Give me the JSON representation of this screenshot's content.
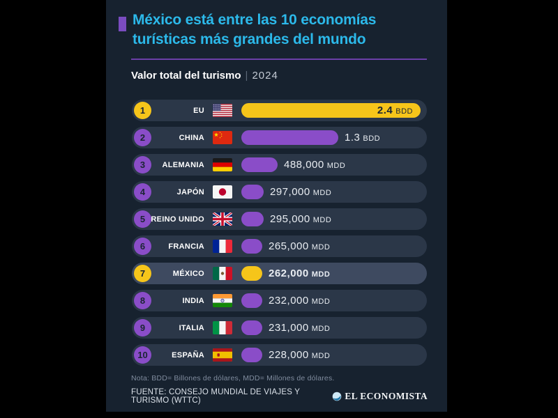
{
  "header": {
    "title_line1": "México está entre las 10 economías",
    "title_line2": "turísticas más grandes del mundo",
    "subtitle_label": "Valor total del turismo",
    "subtitle_separator": "|",
    "subtitle_year": "2024"
  },
  "chart_data": {
    "type": "bar",
    "orientation": "horizontal",
    "title": "Valor total del turismo | 2024",
    "categories": [
      "EU",
      "CHINA",
      "ALEMANIA",
      "JAPÓN",
      "REINO UNIDO",
      "FRANCIA",
      "MÉXICO",
      "INDIA",
      "ITALIA",
      "ESPAÑA"
    ],
    "values_mdd": [
      2400000,
      1300000,
      488000,
      297000,
      295000,
      265000,
      262000,
      232000,
      231000,
      228000
    ],
    "value_labels": [
      "2.4 BDD",
      "1.3 BDD",
      "488,000 MDD",
      "297,000 MDD",
      "295,000 MDD",
      "265,000 MDD",
      "262,000 MDD",
      "232,000 MDD",
      "231,000 MDD",
      "228,000 MDD"
    ],
    "xlim_mdd": [
      0,
      2400000
    ],
    "highlighted_categories": [
      "EU",
      "MÉXICO"
    ],
    "legend": "none",
    "grid": false,
    "rows": [
      {
        "rank": "1",
        "country": "EU",
        "flag": "estados-unidos",
        "value_mdd": 2400000,
        "value_num": "2.4",
        "value_unit": "BDD",
        "accent": "yellow",
        "value_inside_bar": true,
        "value_bold": true,
        "row_highlight": false
      },
      {
        "rank": "2",
        "country": "CHINA",
        "flag": "china",
        "value_mdd": 1300000,
        "value_num": "1.3",
        "value_unit": "BDD",
        "accent": "purple",
        "value_inside_bar": false,
        "value_bold": false,
        "row_highlight": false
      },
      {
        "rank": "3",
        "country": "ALEMANIA",
        "flag": "alemania",
        "value_mdd": 488000,
        "value_num": "488,000",
        "value_unit": "MDD",
        "accent": "purple",
        "value_inside_bar": false,
        "value_bold": false,
        "row_highlight": false
      },
      {
        "rank": "4",
        "country": "JAPÓN",
        "flag": "japon",
        "value_mdd": 297000,
        "value_num": "297,000",
        "value_unit": "MDD",
        "accent": "purple",
        "value_inside_bar": false,
        "value_bold": false,
        "row_highlight": false
      },
      {
        "rank": "5",
        "country": "REINO UNIDO",
        "flag": "reino-unido",
        "value_mdd": 295000,
        "value_num": "295,000",
        "value_unit": "MDD",
        "accent": "purple",
        "value_inside_bar": false,
        "value_bold": false,
        "row_highlight": false
      },
      {
        "rank": "6",
        "country": "FRANCIA",
        "flag": "francia",
        "value_mdd": 265000,
        "value_num": "265,000",
        "value_unit": "MDD",
        "accent": "purple",
        "value_inside_bar": false,
        "value_bold": false,
        "row_highlight": false
      },
      {
        "rank": "7",
        "country": "MÉXICO",
        "flag": "mexico",
        "value_mdd": 262000,
        "value_num": "262,000",
        "value_unit": "MDD",
        "accent": "yellow",
        "value_inside_bar": false,
        "value_bold": true,
        "row_highlight": true
      },
      {
        "rank": "8",
        "country": "INDIA",
        "flag": "india",
        "value_mdd": 232000,
        "value_num": "232,000",
        "value_unit": "MDD",
        "accent": "purple",
        "value_inside_bar": false,
        "value_bold": false,
        "row_highlight": false
      },
      {
        "rank": "9",
        "country": "ITALIA",
        "flag": "italia",
        "value_mdd": 231000,
        "value_num": "231,000",
        "value_unit": "MDD",
        "accent": "purple",
        "value_inside_bar": false,
        "value_bold": false,
        "row_highlight": false
      },
      {
        "rank": "10",
        "country": "ESPAÑA",
        "flag": "espana",
        "value_mdd": 228000,
        "value_num": "228,000",
        "value_unit": "MDD",
        "accent": "purple",
        "value_inside_bar": false,
        "value_bold": false,
        "row_highlight": false
      }
    ]
  },
  "colors": {
    "background": "#000000",
    "panel_bg": "#17222f",
    "title_cyan": "#2cb9ea",
    "divider_purple": "#6b3fa8",
    "bullet_purple": "#7a4cc0",
    "accent_yellow": "#f6c51a",
    "accent_purple": "#8a4dc8",
    "row_bg": "#2b3748",
    "row_bg_highlight": "#3e4a60",
    "value_text": "#e9edf2",
    "dark_text": "#1b2533"
  },
  "footer": {
    "note": "Nota: BDD= Billones de dólares, MDD= Millones de dólares.",
    "source": "FUENTE: CONSEJO MUNDIAL DE VIAJES Y TURISMO (WTTC)",
    "brand": "EL ECONOMISTA"
  }
}
